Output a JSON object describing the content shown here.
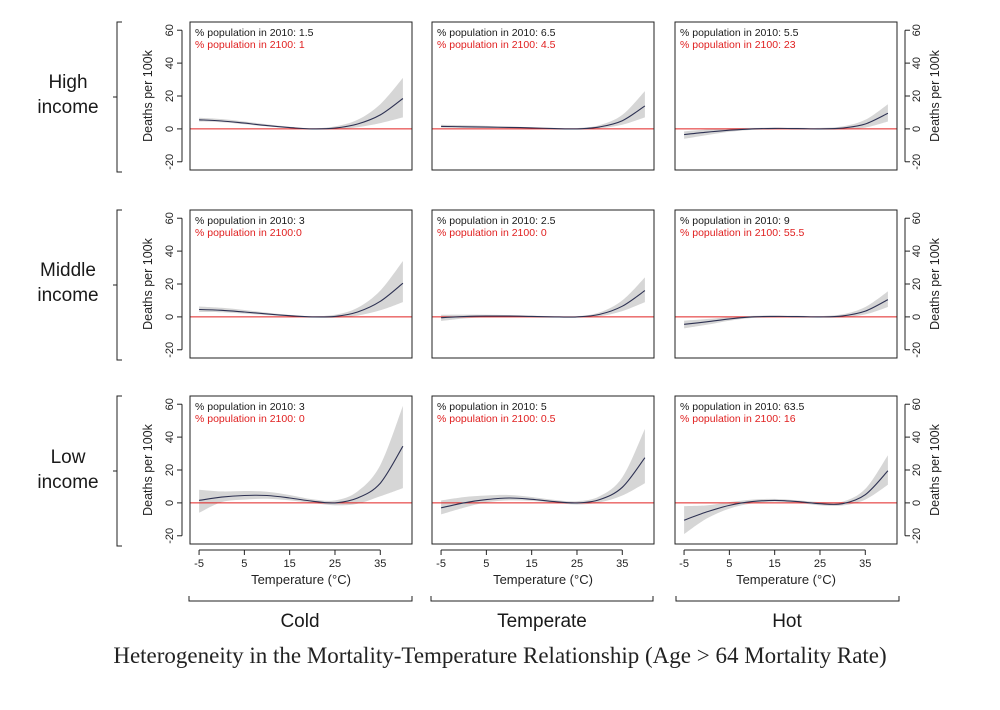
{
  "caption": "Heterogeneity in the Mortality-Temperature Relationship (Age > 64 Mortality Rate)",
  "rows": [
    {
      "line1": "High",
      "line2": "income"
    },
    {
      "line1": "Middle",
      "line2": "income"
    },
    {
      "line1": "Low",
      "line2": "income"
    }
  ],
  "columns": [
    "Cold",
    "Temperate",
    "Hot"
  ],
  "ylabel": "Deaths per 100k",
  "xlabel": "Temperature (°C)",
  "colors": {
    "curve": "#2d3152",
    "band": "#d6d6d6",
    "zero_line": "#e02020",
    "text_2010": "#1a1a1a",
    "text_2100": "#e02020"
  },
  "chart_data": {
    "type": "line",
    "layout": "3x3 small multiples (rows: income, columns: climate)",
    "xlim": [
      -7,
      42
    ],
    "ylim": [
      -25,
      65
    ],
    "xticks": [
      -5,
      5,
      15,
      25,
      35
    ],
    "yticks": [
      -20,
      0,
      20,
      40,
      60
    ],
    "reference_line": 0,
    "panels": [
      {
        "row": "High income",
        "col": "Cold",
        "pop2010": "% population in 2010: 1.5",
        "pop2100": "% population in 2100: 1",
        "x": [
          -5,
          0,
          5,
          10,
          15,
          20,
          25,
          30,
          35,
          40
        ],
        "y": [
          5.5,
          4.8,
          3.5,
          2,
          0.8,
          0,
          0.5,
          3,
          8.5,
          18.5
        ],
        "lower": [
          4.5,
          4,
          2.8,
          1.5,
          0.5,
          -0.3,
          -0.2,
          1,
          3.5,
          7
        ],
        "upper": [
          6.8,
          6,
          4.5,
          2.8,
          1.3,
          0.4,
          1.5,
          5.5,
          15,
          31
        ]
      },
      {
        "row": "High income",
        "col": "Temperate",
        "pop2010": "% population in 2010: 6.5",
        "pop2100": "% population in 2100: 4.5",
        "x": [
          -5,
          0,
          5,
          10,
          15,
          20,
          25,
          30,
          35,
          40
        ],
        "y": [
          1.5,
          1.3,
          1.1,
          0.9,
          0.6,
          0.2,
          0,
          1.2,
          5,
          14
        ],
        "lower": [
          0.8,
          0.7,
          0.6,
          0.4,
          0.2,
          -0.2,
          -0.3,
          0.3,
          2.5,
          7
        ],
        "upper": [
          2.5,
          2.2,
          1.8,
          1.4,
          1,
          0.6,
          0.5,
          2.3,
          8.5,
          23
        ]
      },
      {
        "row": "High income",
        "col": "Hot",
        "pop2010": "% population in 2010: 5.5",
        "pop2100": "% population in 2100: 23",
        "x": [
          -5,
          0,
          5,
          10,
          15,
          20,
          25,
          30,
          35,
          40
        ],
        "y": [
          -3.5,
          -2,
          -0.8,
          0,
          0.3,
          0.2,
          0,
          0.5,
          3,
          9.5
        ],
        "lower": [
          -6,
          -3.8,
          -1.8,
          -0.6,
          -0.2,
          -0.3,
          -0.4,
          -0.4,
          0.8,
          4.5
        ],
        "upper": [
          -1.5,
          -0.4,
          0.3,
          0.6,
          0.8,
          0.7,
          0.6,
          1.5,
          5.5,
          15
        ]
      },
      {
        "row": "Middle income",
        "col": "Cold",
        "pop2010": "% population in 2010: 3",
        "pop2100": "% population in 2100:0",
        "x": [
          -5,
          0,
          5,
          10,
          15,
          20,
          25,
          30,
          35,
          40
        ],
        "y": [
          4.5,
          4,
          3,
          1.8,
          0.7,
          0,
          0.3,
          3,
          9.5,
          20.5
        ],
        "lower": [
          3,
          2.8,
          2,
          1.1,
          0.3,
          -0.4,
          -0.5,
          0.8,
          4,
          9
        ],
        "upper": [
          6.3,
          5.5,
          4.2,
          2.6,
          1.2,
          0.4,
          1.3,
          5.5,
          16,
          34
        ]
      },
      {
        "row": "Middle income",
        "col": "Temperate",
        "pop2010": "% population in 2010: 2.5",
        "pop2100": "% population in 2100: 0",
        "x": [
          -5,
          0,
          5,
          10,
          15,
          20,
          25,
          30,
          35,
          40
        ],
        "y": [
          -0.5,
          0.2,
          0.5,
          0.5,
          0.3,
          0,
          0,
          1.5,
          6.5,
          16
        ],
        "lower": [
          -2.5,
          -1,
          -0.3,
          -0.1,
          -0.2,
          -0.4,
          -0.4,
          0.4,
          3.5,
          9
        ],
        "upper": [
          1.3,
          1.4,
          1.3,
          1.1,
          0.8,
          0.4,
          0.4,
          2.7,
          10,
          24
        ]
      },
      {
        "row": "Middle income",
        "col": "Hot",
        "pop2010": "% population in 2010: 9",
        "pop2100": "% population in 2100: 55.5",
        "x": [
          -5,
          0,
          5,
          10,
          15,
          20,
          25,
          30,
          35,
          40
        ],
        "y": [
          -4.5,
          -3,
          -1.2,
          0,
          0.3,
          0.2,
          0,
          0.6,
          3.5,
          10.5
        ],
        "lower": [
          -7,
          -4.8,
          -2.3,
          -0.7,
          -0.3,
          -0.3,
          -0.4,
          -0.3,
          1.5,
          6
        ],
        "upper": [
          -2.3,
          -1.3,
          -0.2,
          0.6,
          0.8,
          0.7,
          0.5,
          1.6,
          6,
          15.5
        ]
      },
      {
        "row": "Low income",
        "col": "Cold",
        "pop2010": "% population in 2010: 3",
        "pop2100": "% population in 2100: 0",
        "x": [
          -5,
          0,
          5,
          10,
          15,
          20,
          25,
          30,
          35,
          40
        ],
        "y": [
          1.5,
          3.5,
          4.5,
          4.5,
          3,
          1,
          0,
          3,
          12,
          34.5
        ],
        "lower": [
          -6,
          0.5,
          2,
          2.5,
          1.5,
          0,
          -1.5,
          -0.5,
          4,
          9
        ],
        "upper": [
          8,
          7,
          7.2,
          6.8,
          4.8,
          2.2,
          1.5,
          7,
          23,
          59
        ]
      },
      {
        "row": "Low income",
        "col": "Temperate",
        "pop2010": "% population in 2010: 5",
        "pop2100": "% population in 2100: 0.5",
        "x": [
          -5,
          0,
          5,
          10,
          15,
          20,
          25,
          30,
          35,
          40
        ],
        "y": [
          -3,
          0,
          2,
          3,
          2.2,
          0.8,
          0,
          2,
          9.5,
          27.5
        ],
        "lower": [
          -7,
          -3,
          0.3,
          1.5,
          1.2,
          0,
          -1,
          0.3,
          4.5,
          12
        ],
        "upper": [
          1.5,
          3.5,
          4.5,
          4.8,
          3.6,
          1.8,
          1,
          4,
          15.5,
          45
        ]
      },
      {
        "row": "Low income",
        "col": "Hot",
        "pop2010": "% population in 2010: 63.5",
        "pop2100": "% population in 2100: 16",
        "x": [
          -5,
          0,
          5,
          10,
          15,
          20,
          25,
          30,
          35,
          40
        ],
        "y": [
          -10.5,
          -5.5,
          -1.5,
          0.8,
          1.5,
          0.8,
          -0.5,
          -0.5,
          5,
          19.5
        ],
        "lower": [
          -19,
          -9.5,
          -3.5,
          -0.3,
          0.8,
          0,
          -1.5,
          -1.6,
          2,
          11
        ],
        "upper": [
          -2,
          -1.5,
          0.5,
          2,
          2.4,
          1.6,
          0.5,
          0.8,
          8.5,
          29
        ]
      }
    ]
  }
}
